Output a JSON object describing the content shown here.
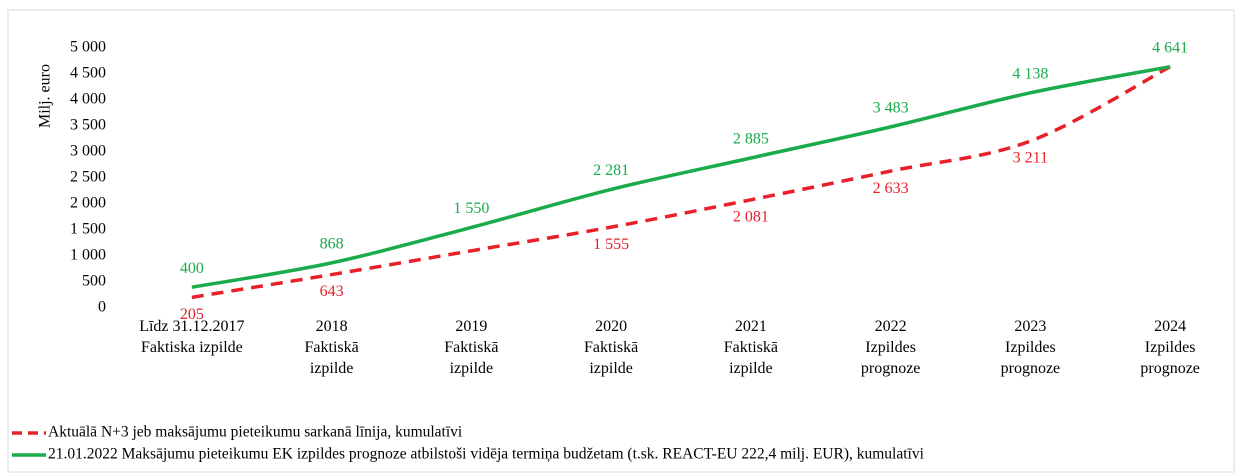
{
  "chart_data": {
    "type": "line",
    "y_label": "Milj. euro",
    "categories": [
      "Līdz 31.12.2017\nFaktiska izpilde",
      "2018\nFaktiskā\nizpilde",
      "2019\nFaktiskā\nizpilde",
      "2020\nFaktiskā\nizpilde",
      "2021\nFaktiskā\nizpilde",
      "2022\nIzpildes\nprognoze",
      "2023\nIzpildes\nprognoze",
      "2024\nIzpildes\nprognoze"
    ],
    "series": [
      {
        "name": "Aktuālā N+3 jeb maksājumu pieteikumu sarkanā līnija, kumulatīvi",
        "color": "#e8202a",
        "dashed": true,
        "label_position": "below",
        "values": [
          205,
          643,
          1100,
          1555,
          2081,
          2633,
          3211,
          4641
        ],
        "value_labels": [
          "205",
          "643",
          null,
          "1 555",
          "2 081",
          "2 633",
          "3 211",
          null
        ]
      },
      {
        "name": "21.01.2022 Maksājumu pieteikumu EK izpildes prognoze atbilstoši vidēja termiņa budžetam (t.sk. REACT-EU 222,4 milj. EUR), kumulatīvi",
        "color": "#1aab4a",
        "dashed": false,
        "label_position": "above",
        "values": [
          400,
          868,
          1550,
          2281,
          2885,
          3483,
          4138,
          4641
        ],
        "value_labels": [
          "400",
          "868",
          "1 550",
          "2 281",
          "2 885",
          "3 483",
          "4 138",
          "4 641"
        ]
      }
    ],
    "ylim": [
      0,
      5000
    ],
    "yticks": [
      0,
      500,
      {
        "value": 1000,
        "label": "1 000"
      },
      {
        "value": 1500,
        "label": "1 500"
      },
      {
        "value": 2000,
        "label": "2 000"
      },
      {
        "value": 2500,
        "label": "2 500"
      },
      {
        "value": 3000,
        "label": "3 000"
      },
      {
        "value": 3500,
        "label": "3 500"
      },
      {
        "value": 4000,
        "label": "4 000"
      },
      {
        "value": 4500,
        "label": "4 500"
      },
      {
        "value": 5000,
        "label": "5 000"
      }
    ],
    "grid": false
  }
}
